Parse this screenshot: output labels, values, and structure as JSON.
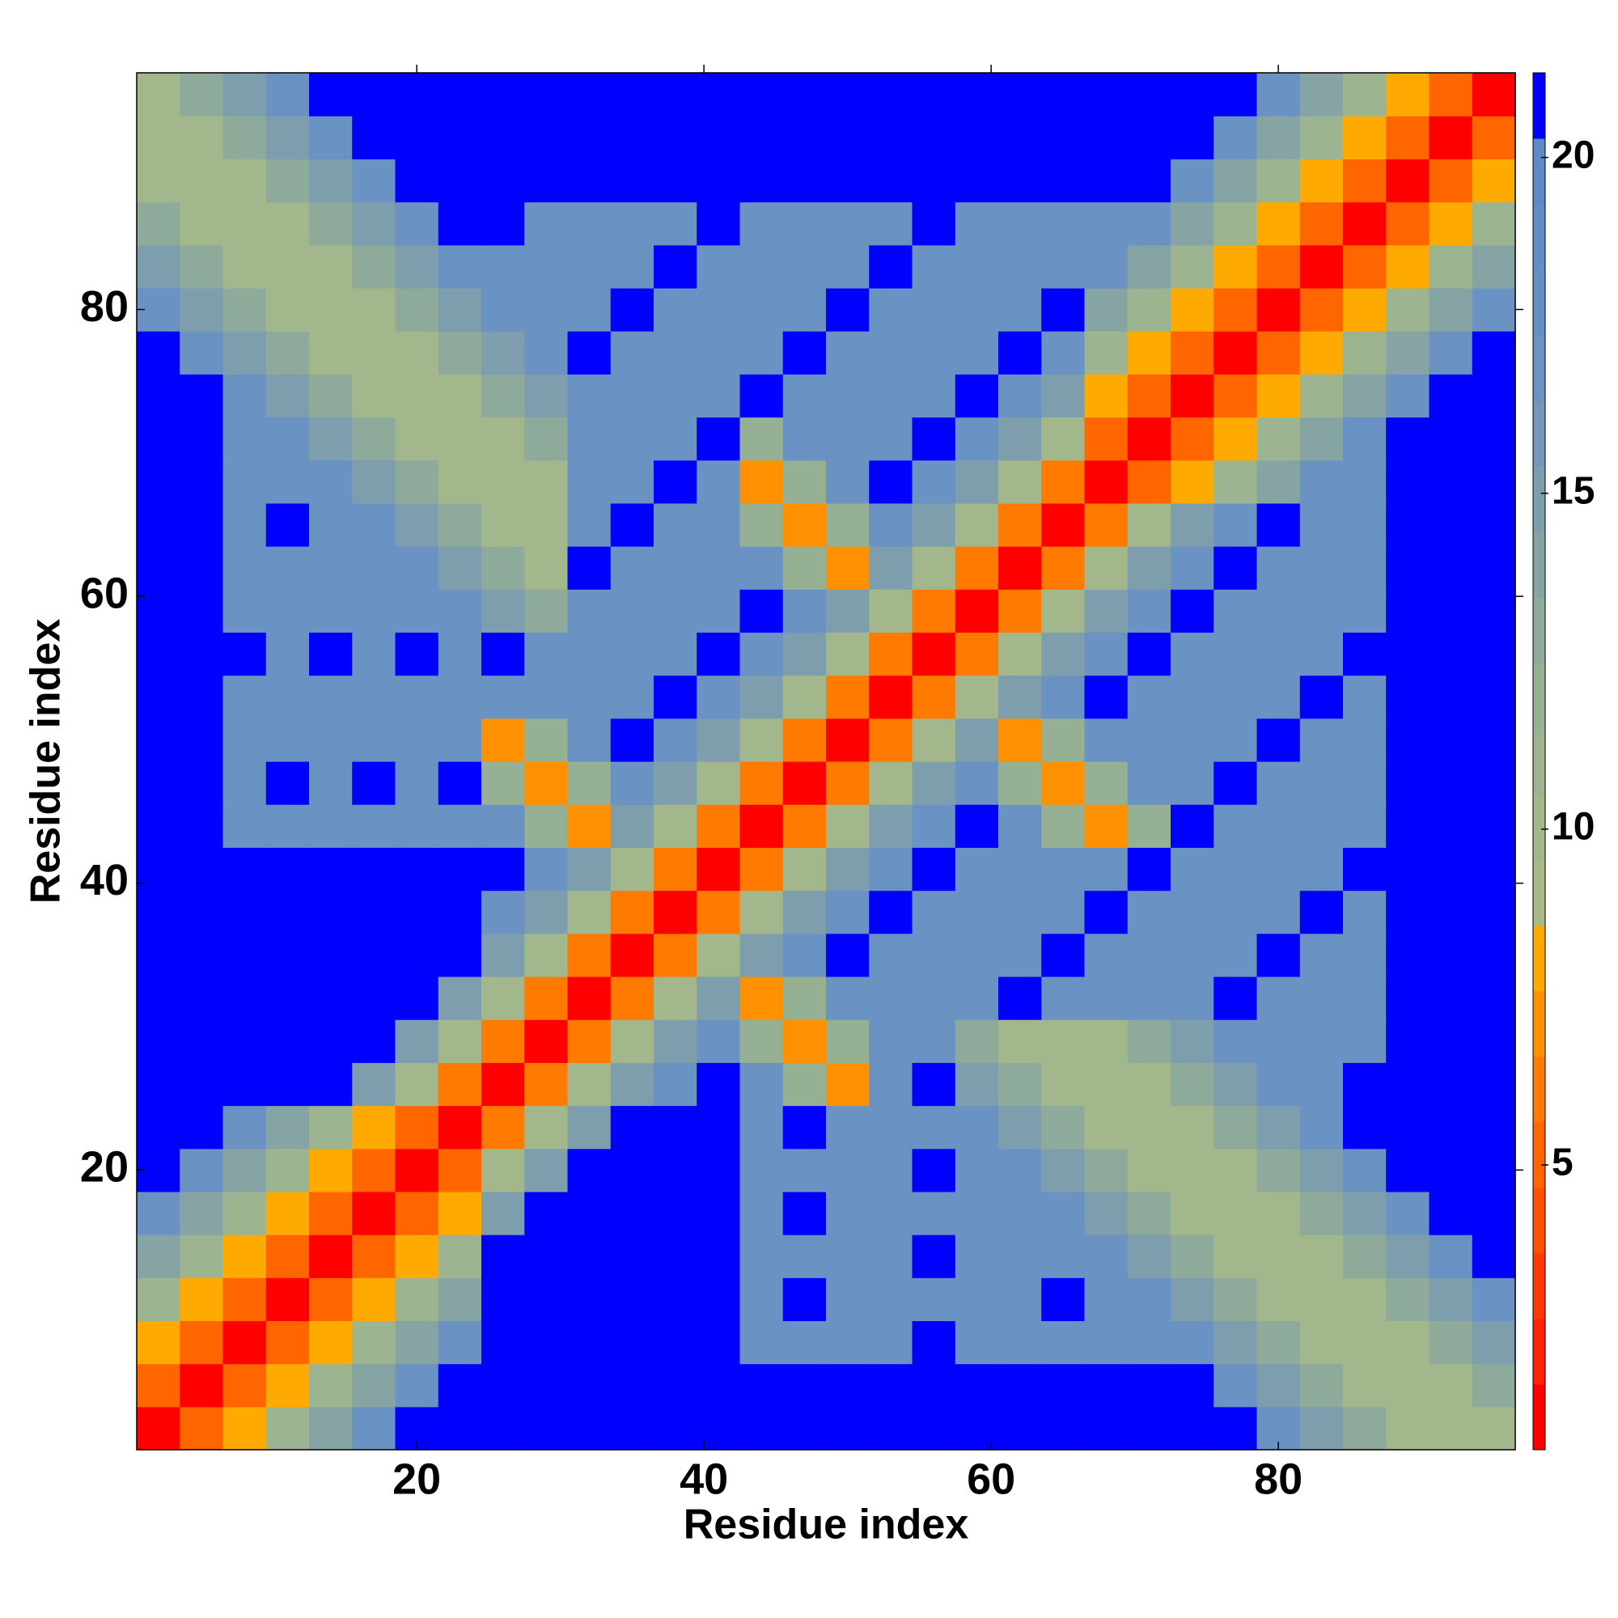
{
  "chart_data": {
    "type": "heatmap",
    "xlabel": "Residue index",
    "ylabel": "Residue index",
    "x": [
      2,
      5,
      8,
      11,
      14,
      17,
      20,
      23,
      26,
      29,
      32,
      35,
      38,
      41,
      44,
      47,
      50,
      53,
      56,
      59,
      62,
      65,
      68,
      71,
      74,
      77,
      80,
      83,
      86,
      89,
      92,
      95
    ],
    "y": [
      2,
      5,
      8,
      11,
      14,
      17,
      20,
      23,
      26,
      29,
      32,
      35,
      38,
      41,
      44,
      47,
      50,
      53,
      56,
      59,
      62,
      65,
      68,
      71,
      74,
      77,
      80,
      83,
      86,
      89,
      92,
      95
    ],
    "z": [
      [
        1,
        5,
        8,
        11,
        14,
        17,
        21,
        21,
        21,
        21,
        21,
        21,
        21,
        21,
        21,
        21,
        21,
        21,
        21,
        21,
        21,
        21,
        21,
        21,
        21,
        21,
        17,
        15,
        13,
        10,
        10,
        10
      ],
      [
        5,
        1,
        5,
        8,
        11,
        14,
        17,
        21,
        21,
        21,
        21,
        21,
        21,
        21,
        21,
        21,
        21,
        21,
        21,
        21,
        21,
        21,
        21,
        21,
        21,
        17,
        15,
        13,
        10,
        10,
        10,
        13
      ],
      [
        8,
        5,
        1,
        5,
        8,
        11,
        14,
        17,
        21,
        21,
        21,
        21,
        21,
        21,
        17,
        17,
        17,
        17,
        21,
        17,
        17,
        17,
        17,
        17,
        17,
        15,
        13,
        10,
        10,
        10,
        13,
        15
      ],
      [
        11,
        8,
        5,
        1,
        5,
        8,
        11,
        14,
        21,
        21,
        21,
        21,
        21,
        21,
        17,
        21,
        17,
        17,
        17,
        17,
        17,
        21,
        17,
        17,
        15,
        13,
        10,
        10,
        10,
        13,
        15,
        17
      ],
      [
        14,
        11,
        8,
        5,
        1,
        5,
        8,
        11,
        21,
        21,
        21,
        21,
        21,
        21,
        17,
        17,
        17,
        17,
        21,
        17,
        17,
        17,
        17,
        15,
        13,
        10,
        10,
        10,
        13,
        15,
        17,
        21
      ],
      [
        17,
        14,
        11,
        8,
        5,
        1,
        5,
        8,
        15,
        21,
        21,
        21,
        21,
        21,
        17,
        21,
        17,
        17,
        17,
        17,
        17,
        17,
        15,
        13,
        10,
        10,
        10,
        13,
        15,
        17,
        21,
        21
      ],
      [
        21,
        17,
        14,
        11,
        8,
        5,
        1,
        5,
        10,
        15,
        21,
        21,
        21,
        21,
        17,
        17,
        17,
        17,
        21,
        17,
        17,
        15,
        13,
        10,
        10,
        10,
        13,
        15,
        17,
        21,
        21,
        21
      ],
      [
        21,
        21,
        17,
        14,
        11,
        8,
        5,
        1,
        6,
        10,
        15,
        21,
        21,
        21,
        17,
        21,
        17,
        17,
        17,
        17,
        15,
        13,
        10,
        10,
        10,
        13,
        15,
        17,
        21,
        21,
        21,
        21
      ],
      [
        21,
        21,
        21,
        21,
        21,
        15,
        10,
        6,
        1,
        6,
        10,
        15,
        17,
        21,
        17,
        12,
        7,
        17,
        21,
        15,
        13,
        10,
        10,
        10,
        13,
        15,
        17,
        17,
        21,
        21,
        21,
        21
      ],
      [
        21,
        21,
        21,
        21,
        21,
        21,
        15,
        10,
        6,
        1,
        6,
        10,
        15,
        17,
        12,
        7,
        12,
        17,
        17,
        13,
        10,
        10,
        10,
        13,
        15,
        17,
        17,
        17,
        17,
        21,
        21,
        21
      ],
      [
        21,
        21,
        21,
        21,
        21,
        21,
        21,
        15,
        10,
        6,
        1,
        6,
        10,
        15,
        7,
        12,
        17,
        17,
        17,
        17,
        21,
        17,
        17,
        17,
        17,
        21,
        17,
        17,
        17,
        21,
        21,
        21
      ],
      [
        21,
        21,
        21,
        21,
        21,
        21,
        21,
        21,
        15,
        10,
        6,
        1,
        6,
        10,
        15,
        17,
        21,
        17,
        17,
        17,
        17,
        21,
        17,
        17,
        17,
        17,
        21,
        17,
        17,
        21,
        21,
        21
      ],
      [
        21,
        21,
        21,
        21,
        21,
        21,
        21,
        21,
        17,
        15,
        10,
        6,
        1,
        6,
        10,
        15,
        17,
        21,
        17,
        17,
        17,
        17,
        21,
        17,
        17,
        17,
        17,
        21,
        17,
        21,
        21,
        21
      ],
      [
        21,
        21,
        21,
        21,
        21,
        21,
        21,
        21,
        21,
        17,
        15,
        10,
        6,
        1,
        6,
        10,
        15,
        17,
        21,
        17,
        17,
        17,
        17,
        21,
        17,
        17,
        17,
        17,
        21,
        21,
        21,
        21
      ],
      [
        21,
        21,
        17,
        17,
        17,
        17,
        17,
        17,
        17,
        12,
        7,
        15,
        10,
        6,
        1,
        6,
        10,
        15,
        17,
        21,
        17,
        12,
        7,
        12,
        21,
        17,
        17,
        17,
        17,
        21,
        21,
        21
      ],
      [
        21,
        21,
        17,
        21,
        17,
        21,
        17,
        21,
        12,
        7,
        12,
        17,
        15,
        10,
        6,
        1,
        6,
        10,
        15,
        17,
        12,
        7,
        12,
        17,
        17,
        21,
        17,
        17,
        17,
        21,
        21,
        21
      ],
      [
        21,
        21,
        17,
        17,
        17,
        17,
        17,
        17,
        7,
        12,
        17,
        21,
        17,
        15,
        10,
        6,
        1,
        6,
        10,
        15,
        7,
        12,
        17,
        17,
        17,
        17,
        21,
        17,
        17,
        21,
        21,
        21
      ],
      [
        21,
        21,
        17,
        17,
        17,
        17,
        17,
        17,
        17,
        17,
        17,
        17,
        21,
        17,
        15,
        10,
        6,
        1,
        6,
        10,
        15,
        17,
        21,
        17,
        17,
        17,
        17,
        21,
        17,
        21,
        21,
        21
      ],
      [
        21,
        21,
        21,
        17,
        21,
        17,
        21,
        17,
        21,
        17,
        17,
        17,
        17,
        21,
        17,
        15,
        10,
        6,
        1,
        6,
        10,
        15,
        17,
        21,
        17,
        17,
        17,
        17,
        21,
        21,
        21,
        21
      ],
      [
        21,
        21,
        17,
        17,
        17,
        17,
        17,
        17,
        15,
        13,
        17,
        17,
        17,
        17,
        21,
        17,
        15,
        10,
        6,
        1,
        6,
        10,
        15,
        17,
        21,
        17,
        17,
        17,
        17,
        21,
        21,
        21
      ],
      [
        21,
        21,
        17,
        17,
        17,
        17,
        17,
        15,
        13,
        10,
        21,
        17,
        17,
        17,
        17,
        12,
        7,
        15,
        10,
        6,
        1,
        6,
        10,
        15,
        17,
        21,
        17,
        17,
        17,
        21,
        21,
        21
      ],
      [
        21,
        21,
        17,
        21,
        17,
        17,
        15,
        13,
        10,
        10,
        17,
        21,
        17,
        17,
        12,
        7,
        12,
        17,
        15,
        10,
        6,
        1,
        6,
        10,
        15,
        17,
        21,
        17,
        17,
        21,
        21,
        21
      ],
      [
        21,
        21,
        17,
        17,
        17,
        15,
        13,
        10,
        10,
        10,
        17,
        17,
        21,
        17,
        7,
        12,
        17,
        21,
        17,
        15,
        10,
        6,
        1,
        5,
        8,
        11,
        14,
        17,
        17,
        21,
        21,
        21
      ],
      [
        21,
        21,
        17,
        17,
        15,
        13,
        10,
        10,
        10,
        13,
        17,
        17,
        17,
        21,
        12,
        17,
        17,
        17,
        21,
        17,
        15,
        10,
        5,
        1,
        5,
        8,
        11,
        14,
        17,
        21,
        21,
        21
      ],
      [
        21,
        21,
        17,
        15,
        13,
        10,
        10,
        10,
        13,
        15,
        17,
        17,
        17,
        17,
        21,
        17,
        17,
        17,
        17,
        21,
        17,
        15,
        8,
        5,
        1,
        5,
        8,
        11,
        14,
        17,
        21,
        21
      ],
      [
        21,
        17,
        15,
        13,
        10,
        10,
        10,
        13,
        15,
        17,
        21,
        17,
        17,
        17,
        17,
        21,
        17,
        17,
        17,
        17,
        21,
        17,
        11,
        8,
        5,
        1,
        5,
        8,
        11,
        14,
        17,
        21
      ],
      [
        17,
        15,
        13,
        10,
        10,
        10,
        13,
        15,
        17,
        17,
        17,
        21,
        17,
        17,
        17,
        17,
        21,
        17,
        17,
        17,
        17,
        21,
        14,
        11,
        8,
        5,
        1,
        5,
        8,
        11,
        14,
        17
      ],
      [
        15,
        13,
        10,
        10,
        10,
        13,
        15,
        17,
        17,
        17,
        17,
        17,
        21,
        17,
        17,
        17,
        17,
        21,
        17,
        17,
        17,
        17,
        17,
        14,
        11,
        8,
        5,
        1,
        5,
        8,
        11,
        14
      ],
      [
        13,
        10,
        10,
        10,
        13,
        15,
        17,
        21,
        21,
        17,
        17,
        17,
        17,
        21,
        17,
        17,
        17,
        17,
        21,
        17,
        17,
        17,
        17,
        17,
        14,
        11,
        8,
        5,
        1,
        5,
        8,
        11
      ],
      [
        10,
        10,
        10,
        13,
        15,
        17,
        21,
        21,
        21,
        21,
        21,
        21,
        21,
        21,
        21,
        21,
        21,
        21,
        21,
        21,
        21,
        21,
        21,
        21,
        17,
        14,
        11,
        8,
        5,
        1,
        5,
        8
      ],
      [
        10,
        10,
        13,
        15,
        17,
        21,
        21,
        21,
        21,
        21,
        21,
        21,
        21,
        21,
        21,
        21,
        21,
        21,
        21,
        21,
        21,
        21,
        21,
        21,
        21,
        17,
        14,
        11,
        8,
        5,
        1,
        5
      ],
      [
        10,
        13,
        15,
        17,
        21,
        21,
        21,
        21,
        21,
        21,
        21,
        21,
        21,
        21,
        21,
        21,
        21,
        21,
        21,
        21,
        21,
        21,
        21,
        21,
        21,
        21,
        17,
        14,
        11,
        8,
        5,
        1
      ]
    ],
    "xlim": [
      0.5,
      96.5
    ],
    "ylim": [
      0.5,
      96.5
    ],
    "xticks": [
      20,
      40,
      60,
      80
    ],
    "yticks": [
      20,
      40,
      60,
      80
    ],
    "colorbar": {
      "zlim": [
        0.76,
        21.26
      ],
      "zticks": [
        5,
        10,
        15,
        20
      ],
      "colors": [
        "#ff0000",
        "#ff2200",
        "#ff3a00",
        "#ff5000",
        "#ff6600",
        "#ff7a00",
        "#ff9000",
        "#ffaa00",
        "#a8ba88",
        "#a2b88c",
        "#9cb490",
        "#96b094",
        "#8eaa9a",
        "#86a4a4",
        "#7e9eae",
        "#7698b6",
        "#6a92c2",
        "#6690c4",
        "#628ec6",
        "#5e8ac8",
        "#0000ff"
      ]
    }
  }
}
